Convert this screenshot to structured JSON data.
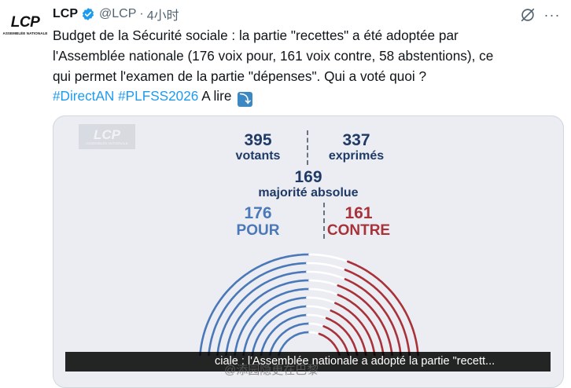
{
  "account": {
    "avatar_logo": "LCP",
    "avatar_sub": "ASSEMBLÉE NATIONALE",
    "name": "LCP",
    "handle": "@LCP",
    "time": "4小时"
  },
  "tweet": {
    "lines": [
      "Budget de la Sécurité sociale : la partie \"recettes\" a été adoptée par",
      "l'Assemblée nationale (176 voix pour, 161 voix contre, 58 abstentions), ce",
      "qui permet l'examen de la partie \"dépenses\". Qui a voté quoi ?"
    ],
    "hashtags": [
      "#DirectAN",
      "#PLFSS2026"
    ],
    "tail": "A lire",
    "arrow": "⤵"
  },
  "media": {
    "watermark": "LCP",
    "watermark_sub": "ASSEMBLÉE NATIONALE",
    "votants_num": "395",
    "votants_lbl": "votants",
    "exprimes_num": "337",
    "exprimes_lbl": "exprimés",
    "majorite_num": "169",
    "majorite_lbl": "majorité absolue",
    "pour_num": "176",
    "pour_lbl": "POUR",
    "contre_num": "161",
    "contre_lbl": "CONTRE",
    "caption": "ciale : l'Assemblée nationale a adopté la partie \"recett..."
  },
  "overlay_watermark": "@添园隐更在巴黎",
  "colors": {
    "pour": "#4a78b8",
    "contre": "#a8323a",
    "abstention": "#ffffff",
    "link": "#1d9bf0"
  }
}
